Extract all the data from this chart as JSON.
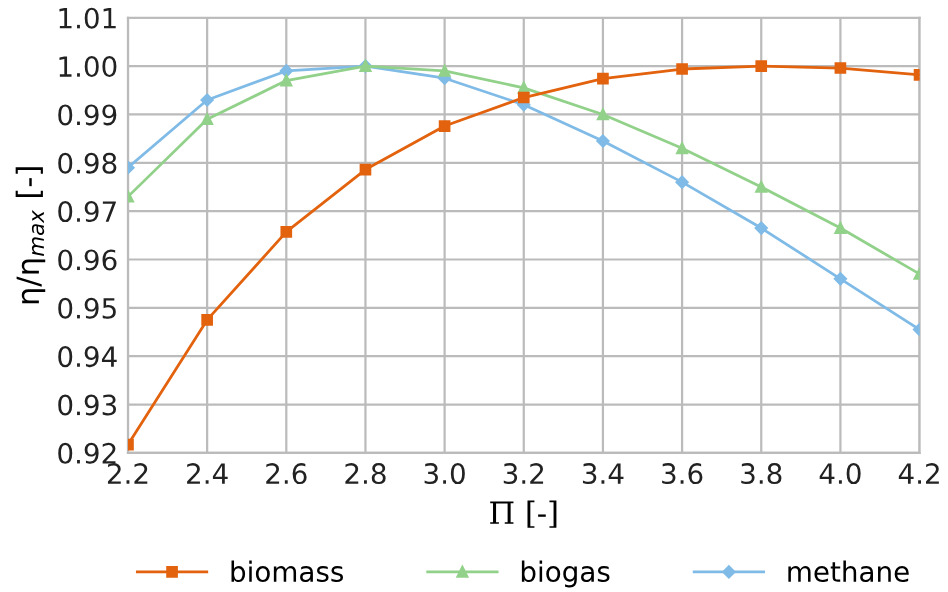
{
  "chart_data": {
    "type": "line",
    "xlabel": "Π [-]",
    "ylabel": "η/η$_{max}$ [-]",
    "x": [
      2.2,
      2.4,
      2.6,
      2.8,
      3.0,
      3.2,
      3.4,
      3.6,
      3.8,
      4.0,
      4.2
    ],
    "series": [
      {
        "name": "biomass",
        "color": "#e2620e",
        "marker": "square",
        "values": [
          0.9217,
          0.9475,
          0.9657,
          0.9786,
          0.9876,
          0.9935,
          0.9974,
          0.9994,
          1.0,
          0.9996,
          0.9982
        ]
      },
      {
        "name": "biogas",
        "color": "#92d18a",
        "marker": "triangle",
        "values": [
          0.973,
          0.989,
          0.997,
          1.0,
          0.999,
          0.9955,
          0.99,
          0.983,
          0.975,
          0.9665,
          0.957
        ]
      },
      {
        "name": "methane",
        "color": "#7fbbe6",
        "marker": "diamond",
        "values": [
          0.979,
          0.993,
          0.999,
          1.0,
          0.9975,
          0.992,
          0.9845,
          0.976,
          0.9665,
          0.956,
          0.9455
        ]
      }
    ],
    "xlim": [
      2.2,
      4.2
    ],
    "xticks": [
      2.2,
      2.4,
      2.6,
      2.8,
      {
        "value": 3.0,
        "label": "3.0"
      },
      3.2,
      3.4,
      3.6,
      3.8,
      {
        "value": 4.0,
        "label": "4.0"
      },
      4.2
    ],
    "ylim": [
      0.92,
      1.01
    ],
    "yticks": [
      0.92,
      0.93,
      0.94,
      0.95,
      0.96,
      0.97,
      0.98,
      0.99,
      {
        "value": 1.0,
        "label": "1.00"
      },
      1.01
    ],
    "grid": true,
    "legend": "bottom",
    "line_style": "solid"
  }
}
